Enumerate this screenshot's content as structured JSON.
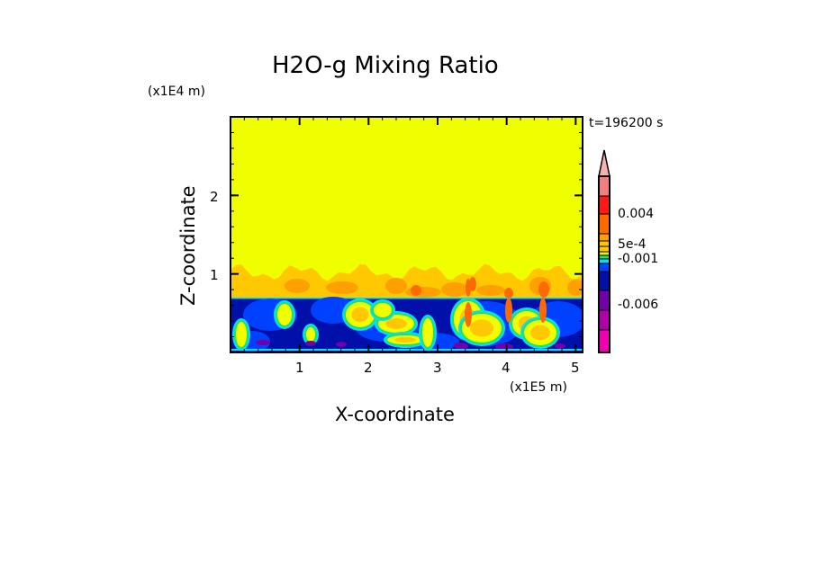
{
  "chart_data": {
    "type": "heatmap",
    "title": "H2O-g Mixing Ratio",
    "xlabel": "X-coordinate",
    "ylabel": "Z-coordinate",
    "x_scale_label": "(x1E5 m)",
    "y_scale_label": "(x1E4 m)",
    "time_label": "t=196200 s",
    "xlim": [
      0,
      5.1
    ],
    "ylim": [
      0,
      3.0
    ],
    "x_ticks": [
      "1",
      "2",
      "3",
      "4",
      "5"
    ],
    "y_ticks": [
      "1",
      "2"
    ],
    "colorbar": {
      "labels": [
        "0.004",
        "5e-4",
        "-0.001",
        "-0.006"
      ],
      "colors": [
        "#f08080",
        "#ff1a1a",
        "#ff6a00",
        "#ff9f00",
        "#ffc800",
        "#f0f000",
        "#22e060",
        "#00e0ff",
        "#0040ff",
        "#0010a8",
        "#7000a8",
        "#b000a8",
        "#f000b0"
      ],
      "extend_color": "#f8b0b0"
    },
    "field_colors": {
      "upper": "#f0ff00",
      "band": "#ffc800",
      "band_dark": "#ff9f00",
      "plume": "#ff6a00",
      "lower": "#0010a8",
      "lower_light": "#0040ff",
      "cyan": "#00e0ff",
      "green": "#22e060",
      "purple": "#7000a8"
    }
  }
}
